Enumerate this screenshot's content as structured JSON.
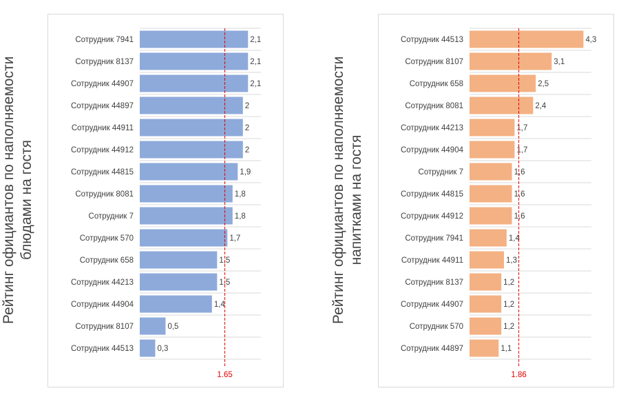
{
  "chart_data": [
    {
      "type": "bar",
      "orientation": "horizontal",
      "title_lines": [
        "Рейтинг официантов по наполняемости",
        "блюдами на гостя"
      ],
      "categories": [
        "Сотрудник 7941",
        "Сотрудник 8137",
        "Сотрудник 44907",
        "Сотрудник 44897",
        "Сотрудник 44911",
        "Сотрудник 44912",
        "Сотрудник 44815",
        "Сотрудник 8081",
        "Сотрудник 7",
        "Сотрудник 570",
        "Сотрудник 658",
        "Сотрудник 44213",
        "Сотрудник 44904",
        "Сотрудник 8107",
        "Сотрудник 44513"
      ],
      "values": [
        2.1,
        2.1,
        2.1,
        2,
        2,
        2,
        1.9,
        1.8,
        1.8,
        1.7,
        1.5,
        1.5,
        1.4,
        0.5,
        0.3
      ],
      "value_labels": [
        "2,1",
        "2,1",
        "2,1",
        "2",
        "2",
        "2",
        "1,9",
        "1,8",
        "1,8",
        "1,7",
        "1,5",
        "1,5",
        "1,4",
        "0,5",
        "0,3"
      ],
      "xlim": [
        0,
        2.35
      ],
      "reference_line": {
        "value": 1.65,
        "label": "1.65",
        "color": "#e00000",
        "style": "dashed"
      },
      "bar_color": "#8eaadb",
      "grid": "horizontal"
    },
    {
      "type": "bar",
      "orientation": "horizontal",
      "title_lines": [
        "Рейтинг официантов по наполняемости",
        "напитками на гостя"
      ],
      "categories": [
        "Сотрудник 44513",
        "Сотрудник 8107",
        "Сотрудник 658",
        "Сотрудник 8081",
        "Сотрудник 44213",
        "Сотрудник 44904",
        "Сотрудник 7",
        "Сотрудник 44815",
        "Сотрудник 44912",
        "Сотрудник 7941",
        "Сотрудник 44911",
        "Сотрудник 8137",
        "Сотрудник 44907",
        "Сотрудник 570",
        "Сотрудник 44897"
      ],
      "values": [
        4.3,
        3.1,
        2.5,
        2.4,
        1.7,
        1.7,
        1.6,
        1.6,
        1.6,
        1.4,
        1.3,
        1.2,
        1.2,
        1.2,
        1.1
      ],
      "value_labels": [
        "4,3",
        "3,1",
        "2,5",
        "2,4",
        "1,7",
        "1,7",
        "1,6",
        "1,6",
        "1,6",
        "1,4",
        "1,3",
        "1,2",
        "1,2",
        "1,2",
        "1,1"
      ],
      "xlim": [
        0,
        4.6
      ],
      "reference_line": {
        "value": 1.86,
        "label": "1.86",
        "color": "#e00000",
        "style": "dashed"
      },
      "bar_color": "#f4b183",
      "grid": "horizontal"
    }
  ]
}
